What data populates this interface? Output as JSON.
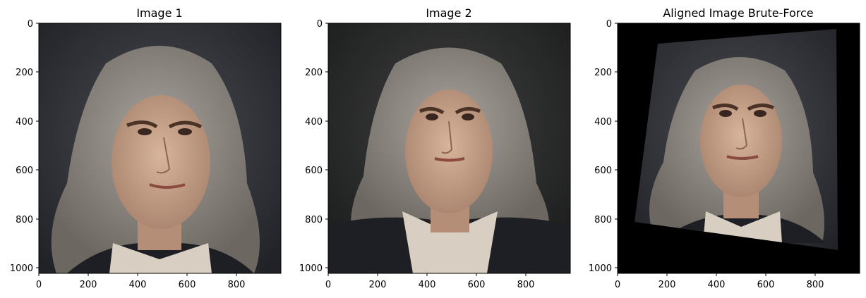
{
  "panels": [
    {
      "title": "Image 1",
      "image_width": 980,
      "image_height": 1024,
      "x_ticks": [
        "0",
        "200",
        "400",
        "600",
        "800"
      ],
      "y_ticks": [
        "0",
        "200",
        "400",
        "600",
        "800",
        "1000"
      ],
      "content": "portrait-dark-background"
    },
    {
      "title": "Image 2",
      "image_width": 980,
      "image_height": 1024,
      "x_ticks": [
        "0",
        "200",
        "400",
        "600",
        "800"
      ],
      "y_ticks": [
        "0",
        "200",
        "400",
        "600",
        "800",
        "1000"
      ],
      "content": "portrait-dark-background"
    },
    {
      "title": "Aligned Image Brute-Force",
      "image_width": 980,
      "image_height": 1024,
      "x_ticks": [
        "0",
        "200",
        "400",
        "600",
        "800"
      ],
      "y_ticks": [
        "0",
        "200",
        "400",
        "600",
        "800",
        "1000"
      ],
      "content": "warped-portrait-black-fill"
    }
  ],
  "colors": {
    "background": "#ffffff",
    "image_bg": "#2b2d31",
    "hair": "#8b8680",
    "skin": "#c9a58e",
    "collar": "#d8cfc2",
    "coat": "#1e1f24",
    "black_fill": "#000000"
  }
}
